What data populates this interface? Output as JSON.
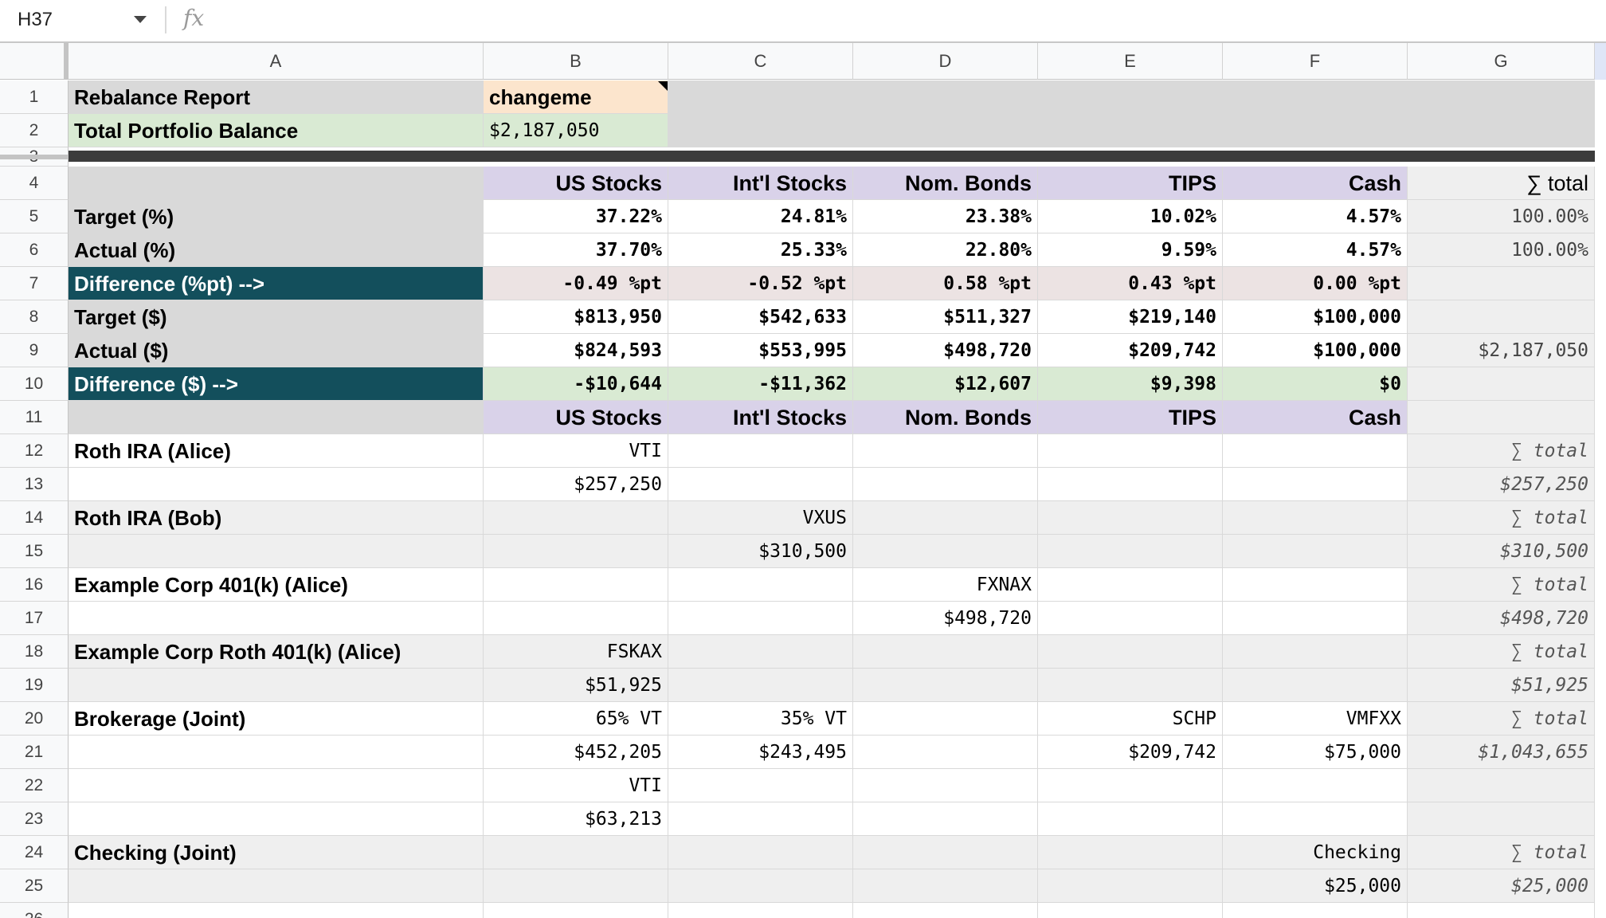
{
  "toolbar": {
    "name_box": "H37",
    "fx_label": "fx"
  },
  "columns": [
    "A",
    "B",
    "C",
    "D",
    "E",
    "F",
    "G"
  ],
  "row_numbers": [
    "1",
    "2",
    "3",
    "4",
    "5",
    "6",
    "7",
    "8",
    "9",
    "10",
    "11",
    "12",
    "13",
    "14",
    "15",
    "16",
    "17",
    "18",
    "19",
    "20",
    "21",
    "22",
    "23",
    "24",
    "25",
    "26"
  ],
  "colors": {
    "label_grey": "#d9d9d9",
    "peach": "#fce5cd",
    "green": "#d9ead3",
    "teal": "#134f5c",
    "purple": "#d9d2e9",
    "light_grey": "#efefef",
    "pink_grey": "#ece3e3",
    "total_grey": "#efefef"
  },
  "rows": [
    {
      "label": "Rebalance Report",
      "b": "changeme",
      "c": "",
      "d": "",
      "e": "",
      "f": "",
      "g": ""
    },
    {
      "label": "Total Portfolio Balance",
      "b": "$2,187,050",
      "c": "",
      "d": "",
      "e": "",
      "f": "",
      "g": ""
    },
    {
      "label": "",
      "b": "",
      "c": "",
      "d": "",
      "e": "",
      "f": "",
      "g": ""
    },
    {
      "label": "",
      "b": "US Stocks",
      "c": "Int'l Stocks",
      "d": "Nom. Bonds",
      "e": "TIPS",
      "f": "Cash",
      "g": "∑ total"
    },
    {
      "label": "Target (%)",
      "b": "37.22%",
      "c": "24.81%",
      "d": "23.38%",
      "e": "10.02%",
      "f": "4.57%",
      "g": "100.00%"
    },
    {
      "label": "Actual (%)",
      "b": "37.70%",
      "c": "25.33%",
      "d": "22.80%",
      "e": "9.59%",
      "f": "4.57%",
      "g": "100.00%"
    },
    {
      "label": "Difference (%pt) -->",
      "b": "-0.49 %pt",
      "c": "-0.52 %pt",
      "d": "0.58 %pt",
      "e": "0.43 %pt",
      "f": "0.00 %pt",
      "g": ""
    },
    {
      "label": "Target ($)",
      "b": "$813,950",
      "c": "$542,633",
      "d": "$511,327",
      "e": "$219,140",
      "f": "$100,000",
      "g": ""
    },
    {
      "label": "Actual ($)",
      "b": "$824,593",
      "c": "$553,995",
      "d": "$498,720",
      "e": "$209,742",
      "f": "$100,000",
      "g": "$2,187,050"
    },
    {
      "label": "Difference ($) -->",
      "b": "-$10,644",
      "c": "-$11,362",
      "d": "$12,607",
      "e": "$9,398",
      "f": "$0",
      "g": ""
    },
    {
      "label": "",
      "b": "US Stocks",
      "c": "Int'l Stocks",
      "d": "Nom. Bonds",
      "e": "TIPS",
      "f": "Cash",
      "g": ""
    },
    {
      "label": "Roth IRA (Alice)",
      "b": "VTI",
      "c": "",
      "d": "",
      "e": "",
      "f": "",
      "g": "∑ total"
    },
    {
      "label": "",
      "b": "$257,250",
      "c": "",
      "d": "",
      "e": "",
      "f": "",
      "g": "$257,250"
    },
    {
      "label": "Roth IRA (Bob)",
      "b": "",
      "c": "VXUS",
      "d": "",
      "e": "",
      "f": "",
      "g": "∑ total"
    },
    {
      "label": "",
      "b": "",
      "c": "$310,500",
      "d": "",
      "e": "",
      "f": "",
      "g": "$310,500"
    },
    {
      "label": "Example Corp 401(k) (Alice)",
      "b": "",
      "c": "",
      "d": "FXNAX",
      "e": "",
      "f": "",
      "g": "∑ total"
    },
    {
      "label": "",
      "b": "",
      "c": "",
      "d": "$498,720",
      "e": "",
      "f": "",
      "g": "$498,720"
    },
    {
      "label": "Example Corp Roth 401(k) (Alice)",
      "b": "FSKAX",
      "c": "",
      "d": "",
      "e": "",
      "f": "",
      "g": "∑ total"
    },
    {
      "label": "",
      "b": "$51,925",
      "c": "",
      "d": "",
      "e": "",
      "f": "",
      "g": "$51,925"
    },
    {
      "label": "Brokerage (Joint)",
      "b": "65% VT",
      "c": "35% VT",
      "d": "",
      "e": "SCHP",
      "f": "VMFXX",
      "g": "∑ total"
    },
    {
      "label": "",
      "b": "$452,205",
      "c": "$243,495",
      "d": "",
      "e": "$209,742",
      "f": "$75,000",
      "g": "$1,043,655"
    },
    {
      "label": "",
      "b": "VTI",
      "c": "",
      "d": "",
      "e": "",
      "f": "",
      "g": ""
    },
    {
      "label": "",
      "b": "$63,213",
      "c": "",
      "d": "",
      "e": "",
      "f": "",
      "g": ""
    },
    {
      "label": "Checking (Joint)",
      "b": "",
      "c": "",
      "d": "",
      "e": "",
      "f": "Checking",
      "g": "∑ total"
    },
    {
      "label": "",
      "b": "",
      "c": "",
      "d": "",
      "e": "",
      "f": "$25,000",
      "g": "$25,000"
    },
    {
      "label": "",
      "b": "",
      "c": "",
      "d": "",
      "e": "",
      "f": "",
      "g": ""
    }
  ]
}
